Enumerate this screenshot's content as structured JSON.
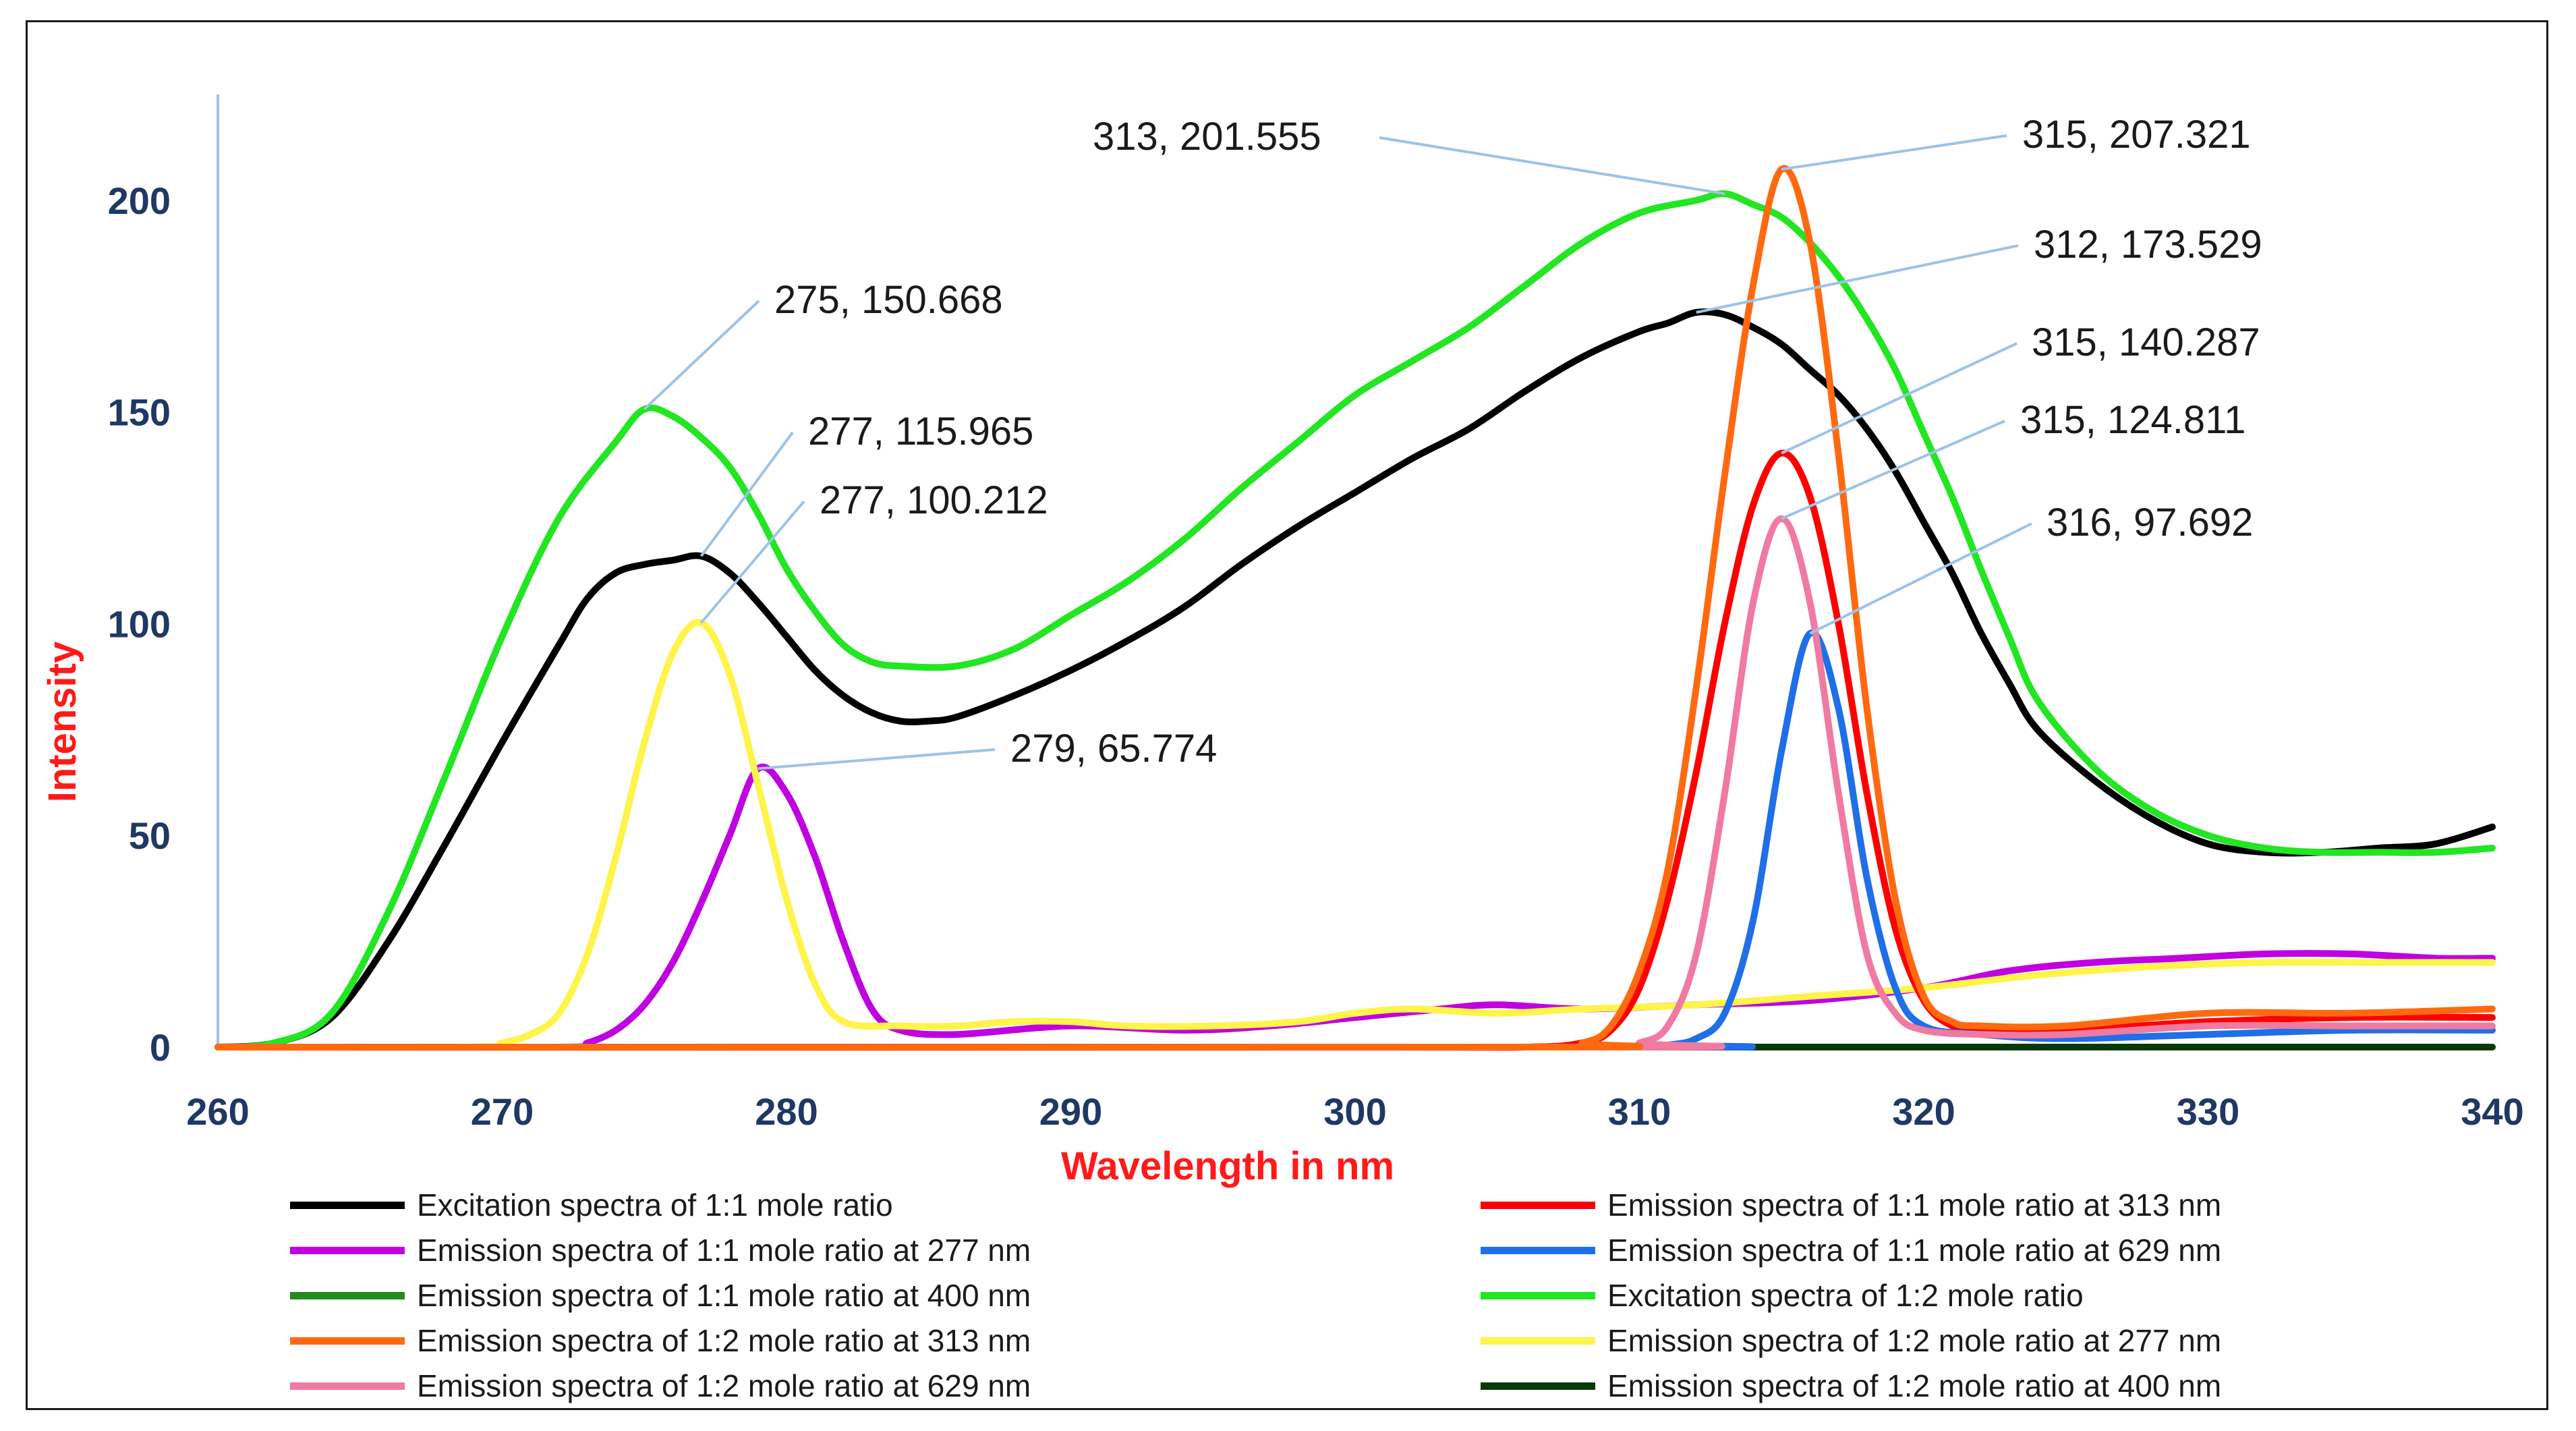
{
  "chart_data": {
    "type": "line",
    "title": "",
    "xlabel": "Wavelength in nm",
    "ylabel": "Intensity",
    "xlim": [
      260,
      340
    ],
    "ylim": [
      0,
      225
    ],
    "xticks": [
      260,
      270,
      280,
      290,
      300,
      310,
      320,
      330,
      340
    ],
    "xtick_labels": [
      "260",
      "270",
      "280",
      "290",
      "300",
      "310",
      "320",
      "330",
      "340"
    ],
    "yticks": [
      0,
      50,
      100,
      150,
      200
    ],
    "ytick_labels": [
      "0",
      "50",
      "100",
      "150",
      "200"
    ],
    "grid": false,
    "legend_position": "bottom",
    "series": [
      {
        "name": "Excitation spectra of 1:1 mole ratio",
        "color": "#000000",
        "points": [
          [
            260,
            0
          ],
          [
            262,
            1
          ],
          [
            264,
            7
          ],
          [
            266,
            25
          ],
          [
            268,
            48
          ],
          [
            270,
            72
          ],
          [
            272,
            95
          ],
          [
            273,
            106
          ],
          [
            274,
            112
          ],
          [
            275,
            114
          ],
          [
            276,
            115
          ],
          [
            277,
            115.965
          ],
          [
            278,
            112
          ],
          [
            279,
            105
          ],
          [
            280,
            97
          ],
          [
            281,
            89
          ],
          [
            282,
            83
          ],
          [
            283,
            79
          ],
          [
            284,
            77
          ],
          [
            285,
            77
          ],
          [
            286,
            78
          ],
          [
            288,
            83
          ],
          [
            290,
            89
          ],
          [
            292,
            96
          ],
          [
            294,
            104
          ],
          [
            296,
            114
          ],
          [
            298,
            123
          ],
          [
            300,
            131
          ],
          [
            302,
            139
          ],
          [
            304,
            146
          ],
          [
            306,
            155
          ],
          [
            308,
            163
          ],
          [
            310,
            169
          ],
          [
            311,
            171
          ],
          [
            312,
            173.529
          ],
          [
            313,
            173
          ],
          [
            314,
            170
          ],
          [
            315,
            166
          ],
          [
            316,
            160
          ],
          [
            317,
            154
          ],
          [
            318,
            146
          ],
          [
            319,
            136
          ],
          [
            320,
            124
          ],
          [
            321,
            112
          ],
          [
            322,
            98
          ],
          [
            323,
            86
          ],
          [
            324,
            75
          ],
          [
            326,
            63
          ],
          [
            328,
            54
          ],
          [
            330,
            48
          ],
          [
            332,
            46
          ],
          [
            334,
            46
          ],
          [
            336,
            47
          ],
          [
            338,
            48
          ],
          [
            340,
            52
          ]
        ]
      },
      {
        "name": "Emission spectra of 1:1 mole ratio at 313 nm",
        "color": "#ff0000",
        "points": [
          [
            260,
            0
          ],
          [
            300,
            0
          ],
          [
            306,
            0
          ],
          [
            308,
            1
          ],
          [
            309,
            4
          ],
          [
            310,
            14
          ],
          [
            311,
            35
          ],
          [
            312,
            65
          ],
          [
            313,
            100
          ],
          [
            314,
            128
          ],
          [
            315,
            140.287
          ],
          [
            316,
            130
          ],
          [
            317,
            100
          ],
          [
            318,
            60
          ],
          [
            319,
            28
          ],
          [
            320,
            11
          ],
          [
            321,
            5
          ],
          [
            322,
            4
          ],
          [
            325,
            4
          ],
          [
            330,
            6
          ],
          [
            335,
            7
          ],
          [
            340,
            7
          ]
        ]
      },
      {
        "name": "Emission spectra of 1:1 mole ratio at 277 nm",
        "color": "#c000e0",
        "points": [
          [
            260,
            0
          ],
          [
            272,
            0
          ],
          [
            273,
            1
          ],
          [
            274,
            4
          ],
          [
            275,
            10
          ],
          [
            276,
            20
          ],
          [
            277,
            34
          ],
          [
            278,
            50
          ],
          [
            279,
            65.774
          ],
          [
            280,
            60
          ],
          [
            281,
            45
          ],
          [
            282,
            25
          ],
          [
            283,
            9
          ],
          [
            284,
            4
          ],
          [
            286,
            3
          ],
          [
            290,
            5
          ],
          [
            294,
            4
          ],
          [
            297,
            5
          ],
          [
            300,
            7
          ],
          [
            303,
            9
          ],
          [
            305,
            10
          ],
          [
            308,
            9
          ],
          [
            312,
            10
          ],
          [
            316,
            11
          ],
          [
            320,
            14
          ],
          [
            323,
            18
          ],
          [
            326,
            20
          ],
          [
            329,
            21
          ],
          [
            332,
            22
          ],
          [
            335,
            22
          ],
          [
            338,
            21
          ],
          [
            340,
            21
          ]
        ]
      },
      {
        "name": "Emission spectra of 1:1 mole ratio at 629 nm",
        "color": "#1f6fe8",
        "points": [
          [
            260,
            0
          ],
          [
            310,
            0
          ],
          [
            311,
            0.5
          ],
          [
            312,
            2
          ],
          [
            313,
            8
          ],
          [
            314,
            30
          ],
          [
            315,
            70
          ],
          [
            316,
            97.692
          ],
          [
            317,
            80
          ],
          [
            318,
            40
          ],
          [
            319,
            14
          ],
          [
            320,
            5
          ],
          [
            322,
            3
          ],
          [
            325,
            2
          ],
          [
            330,
            3
          ],
          [
            335,
            4
          ],
          [
            340,
            4
          ]
        ]
      },
      {
        "name": "Emission spectra of 1:1 mole ratio at 400 nm",
        "color": "#1e8c1e",
        "points": [
          [
            260,
            0
          ],
          [
            340,
            0
          ]
        ]
      },
      {
        "name": "Excitation spectra of 1:2 mole ratio",
        "color": "#22e622",
        "points": [
          [
            260,
            0
          ],
          [
            262,
            1
          ],
          [
            264,
            8
          ],
          [
            266,
            32
          ],
          [
            268,
            64
          ],
          [
            270,
            97
          ],
          [
            272,
            125
          ],
          [
            274,
            143
          ],
          [
            275,
            150.668
          ],
          [
            276,
            149
          ],
          [
            277,
            144
          ],
          [
            278,
            137
          ],
          [
            279,
            126
          ],
          [
            280,
            113
          ],
          [
            281,
            103
          ],
          [
            282,
            95
          ],
          [
            283,
            91
          ],
          [
            284,
            90
          ],
          [
            286,
            90
          ],
          [
            288,
            94
          ],
          [
            290,
            102
          ],
          [
            292,
            110
          ],
          [
            294,
            120
          ],
          [
            296,
            132
          ],
          [
            298,
            143
          ],
          [
            300,
            154
          ],
          [
            302,
            162
          ],
          [
            304,
            170
          ],
          [
            306,
            180
          ],
          [
            308,
            190
          ],
          [
            310,
            197
          ],
          [
            312,
            200
          ],
          [
            313,
            201.555
          ],
          [
            314,
            199
          ],
          [
            315,
            196
          ],
          [
            316,
            190
          ],
          [
            317,
            182
          ],
          [
            318,
            172
          ],
          [
            319,
            160
          ],
          [
            320,
            145
          ],
          [
            321,
            130
          ],
          [
            322,
            113
          ],
          [
            323,
            97
          ],
          [
            324,
            82
          ],
          [
            326,
            66
          ],
          [
            328,
            56
          ],
          [
            330,
            50
          ],
          [
            332,
            47
          ],
          [
            334,
            46
          ],
          [
            336,
            46
          ],
          [
            338,
            46
          ],
          [
            340,
            47
          ]
        ]
      },
      {
        "name": "Emission spectra of 1:2 mole ratio at 313 nm",
        "color": "#ff6a10",
        "points": [
          [
            260,
            0
          ],
          [
            306,
            0
          ],
          [
            308,
            1
          ],
          [
            309,
            5
          ],
          [
            310,
            18
          ],
          [
            311,
            42
          ],
          [
            312,
            85
          ],
          [
            313,
            135
          ],
          [
            314,
            180
          ],
          [
            315,
            207.321
          ],
          [
            316,
            190
          ],
          [
            317,
            140
          ],
          [
            318,
            80
          ],
          [
            319,
            35
          ],
          [
            320,
            12
          ],
          [
            321,
            6
          ],
          [
            322,
            5
          ],
          [
            325,
            5
          ],
          [
            330,
            8
          ],
          [
            335,
            8
          ],
          [
            340,
            9
          ]
        ]
      },
      {
        "name": "Emission spectra of 1:2 mole ratio at 277 nm",
        "color": "#fff44a",
        "points": [
          [
            260,
            0
          ],
          [
            269,
            0
          ],
          [
            270,
            1
          ],
          [
            271,
            3
          ],
          [
            272,
            8
          ],
          [
            273,
            22
          ],
          [
            274,
            45
          ],
          [
            275,
            72
          ],
          [
            276,
            93
          ],
          [
            277,
            100.212
          ],
          [
            278,
            88
          ],
          [
            279,
            62
          ],
          [
            280,
            35
          ],
          [
            281,
            15
          ],
          [
            282,
            6
          ],
          [
            284,
            5
          ],
          [
            286,
            5
          ],
          [
            288,
            6
          ],
          [
            290,
            6
          ],
          [
            292,
            5
          ],
          [
            295,
            5
          ],
          [
            298,
            6
          ],
          [
            300,
            8
          ],
          [
            302,
            9
          ],
          [
            305,
            8
          ],
          [
            308,
            9
          ],
          [
            312,
            10
          ],
          [
            316,
            12
          ],
          [
            320,
            14
          ],
          [
            324,
            17
          ],
          [
            328,
            19
          ],
          [
            332,
            20
          ],
          [
            336,
            20
          ],
          [
            340,
            20
          ]
        ]
      },
      {
        "name": "Emission spectra of 1:2 mole ratio at 629 nm",
        "color": "#f07aa0",
        "points": [
          [
            260,
            0
          ],
          [
            309,
            0
          ],
          [
            310,
            1
          ],
          [
            311,
            5
          ],
          [
            312,
            22
          ],
          [
            313,
            60
          ],
          [
            314,
            105
          ],
          [
            315,
            124.811
          ],
          [
            316,
            105
          ],
          [
            317,
            60
          ],
          [
            318,
            22
          ],
          [
            319,
            8
          ],
          [
            320,
            4
          ],
          [
            322,
            3
          ],
          [
            325,
            3
          ],
          [
            330,
            5
          ],
          [
            335,
            5
          ],
          [
            340,
            5
          ]
        ]
      },
      {
        "name": "Emission spectra of 1:2 mole ratio at 400 nm",
        "color": "#0a3a0a",
        "points": [
          [
            260,
            0
          ],
          [
            340,
            0
          ]
        ]
      }
    ],
    "annotations": [
      {
        "text": "313, 201.555",
        "x": 313,
        "y": 201.555
      },
      {
        "text": "315, 207.321",
        "x": 315,
        "y": 207.321
      },
      {
        "text": "312, 173.529",
        "x": 312,
        "y": 173.529
      },
      {
        "text": "315, 140.287",
        "x": 315,
        "y": 140.287
      },
      {
        "text": "315, 124.811",
        "x": 315,
        "y": 124.811
      },
      {
        "text": "316, 97.692",
        "x": 316,
        "y": 97.692
      },
      {
        "text": "275, 150.668",
        "x": 275,
        "y": 150.668
      },
      {
        "text": "277, 115.965",
        "x": 277,
        "y": 115.965
      },
      {
        "text": "277, 100.212",
        "x": 277,
        "y": 100.212
      },
      {
        "text": "279, 65.774",
        "x": 279,
        "y": 65.774
      }
    ]
  }
}
